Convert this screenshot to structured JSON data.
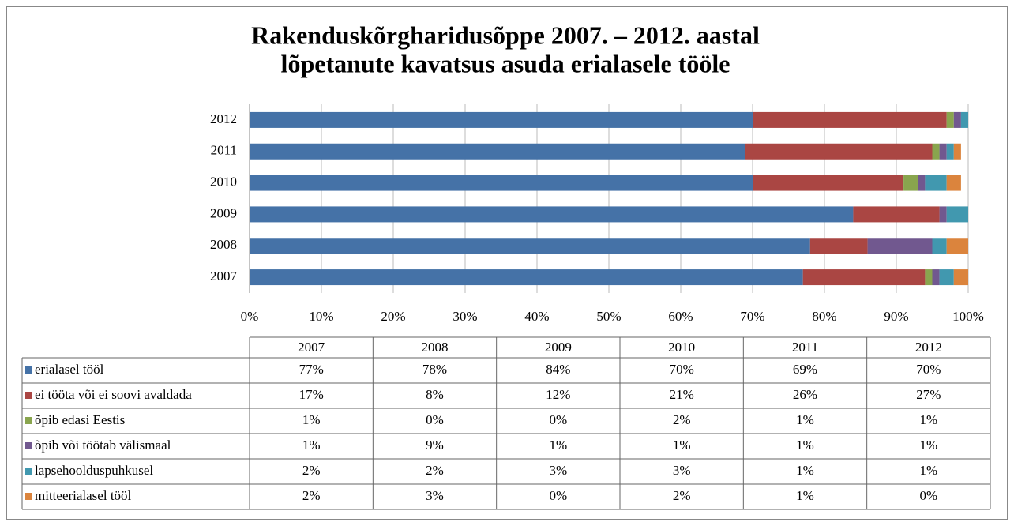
{
  "chart_data": {
    "type": "bar",
    "orientation": "horizontal",
    "stacked": true,
    "title": [
      "Rakenduskõrgharidusõppe 2007. – 2012. aastal",
      "lõpetanute kavatsus asuda erialasele tööle"
    ],
    "categories": [
      "2007",
      "2008",
      "2009",
      "2010",
      "2011",
      "2012"
    ],
    "series": [
      {
        "name": "erialasel tööl",
        "color": "#4572a7",
        "values": [
          77,
          78,
          84,
          70,
          69,
          70
        ],
        "value_labels": [
          "77%",
          "78%",
          "84%",
          "70%",
          "69%",
          "70%"
        ]
      },
      {
        "name": "ei tööta või ei soovi avaldada",
        "color": "#aa4643",
        "values": [
          17,
          8,
          12,
          21,
          26,
          27
        ],
        "value_labels": [
          "17%",
          "8%",
          "12%",
          "21%",
          "26%",
          "27%"
        ]
      },
      {
        "name": "õpib edasi Eestis",
        "color": "#89a54e",
        "values": [
          1,
          0,
          0,
          2,
          1,
          1
        ],
        "value_labels": [
          "1%",
          "0%",
          "0%",
          "2%",
          "1%",
          "1%"
        ]
      },
      {
        "name": "õpib või töötab välismaal",
        "color": "#71588f",
        "values": [
          1,
          9,
          1,
          1,
          1,
          1
        ],
        "value_labels": [
          "1%",
          "9%",
          "1%",
          "1%",
          "1%",
          "1%"
        ]
      },
      {
        "name": "lapsehoolduspuhkusel",
        "color": "#4198af",
        "values": [
          2,
          2,
          3,
          3,
          1,
          1
        ],
        "value_labels": [
          "2%",
          "2%",
          "3%",
          "3%",
          "1%",
          "1%"
        ]
      },
      {
        "name": "mitteerialasel tööl",
        "color": "#db843d",
        "values": [
          2,
          3,
          0,
          2,
          1,
          0
        ],
        "value_labels": [
          "2%",
          "3%",
          "0%",
          "2%",
          "1%",
          "0%"
        ]
      }
    ],
    "xlim": [
      0,
      100
    ],
    "xticks": [
      {
        "value": 0,
        "label": "0%"
      },
      {
        "value": 10,
        "label": "10%"
      },
      {
        "value": 20,
        "label": "20%"
      },
      {
        "value": 30,
        "label": "30%"
      },
      {
        "value": 40,
        "label": "40%"
      },
      {
        "value": 50,
        "label": "50%"
      },
      {
        "value": 60,
        "label": "60%"
      },
      {
        "value": 70,
        "label": "70%"
      },
      {
        "value": 80,
        "label": "80%"
      },
      {
        "value": 90,
        "label": "90%"
      },
      {
        "value": 100,
        "label": "100%"
      }
    ],
    "grid": true
  }
}
